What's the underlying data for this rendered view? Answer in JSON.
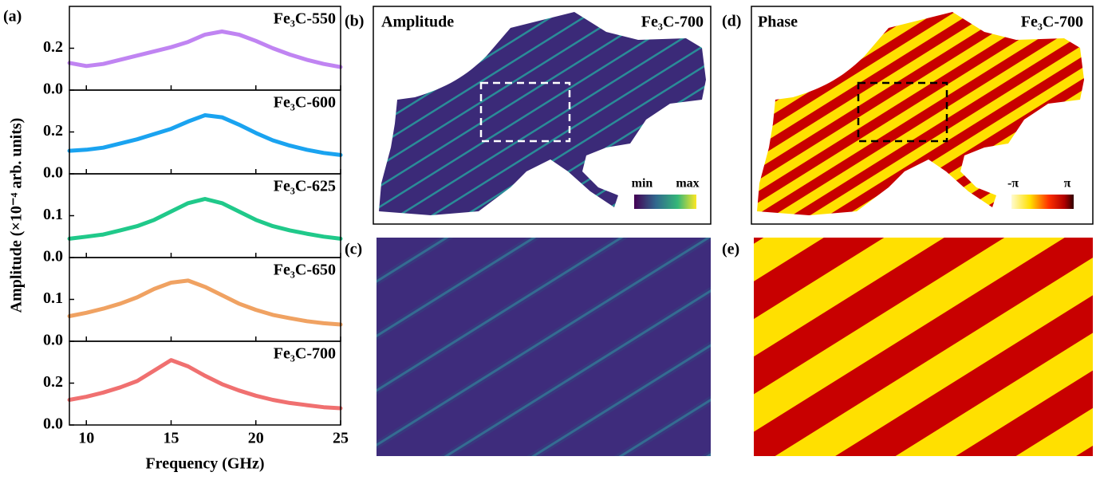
{
  "figure": {
    "panel_label": "(a)",
    "xlabel": "Frequency (GHz)",
    "ylabel": "Amplitude (×10⁻⁴ arb. units)"
  },
  "chart_data": [
    {
      "type": "line",
      "title": "Fe₃C-550",
      "color": "#c084f2",
      "xlim": [
        9,
        25
      ],
      "x": [
        9,
        10,
        11,
        12,
        13,
        14,
        15,
        16,
        17,
        18,
        19,
        20,
        21,
        22,
        23,
        24,
        25
      ],
      "values": [
        0.13,
        0.115,
        0.125,
        0.145,
        0.165,
        0.185,
        0.205,
        0.23,
        0.265,
        0.28,
        0.265,
        0.235,
        0.2,
        0.17,
        0.145,
        0.125,
        0.11
      ],
      "ylim": [
        0,
        0.4
      ],
      "yticks": [
        {
          "value": 0,
          "label": "0.0"
        },
        0.2
      ]
    },
    {
      "type": "line",
      "title": "Fe₃C-600",
      "color": "#1aa3f0",
      "xlim": [
        9,
        25
      ],
      "x": [
        9,
        10,
        11,
        12,
        13,
        14,
        15,
        16,
        17,
        18,
        19,
        20,
        21,
        22,
        23,
        24,
        25
      ],
      "values": [
        0.11,
        0.115,
        0.125,
        0.145,
        0.165,
        0.19,
        0.215,
        0.25,
        0.28,
        0.27,
        0.235,
        0.195,
        0.16,
        0.135,
        0.115,
        0.1,
        0.09
      ],
      "ylim": [
        0,
        0.4
      ],
      "yticks": [
        {
          "value": 0,
          "label": "0.0"
        },
        0.2
      ]
    },
    {
      "type": "line",
      "title": "Fe₃C-625",
      "color": "#20c98a",
      "xlim": [
        9,
        25
      ],
      "x": [
        9,
        10,
        11,
        12,
        13,
        14,
        15,
        16,
        17,
        18,
        19,
        20,
        21,
        22,
        23,
        24,
        25
      ],
      "values": [
        0.045,
        0.05,
        0.055,
        0.065,
        0.075,
        0.09,
        0.11,
        0.13,
        0.14,
        0.13,
        0.11,
        0.09,
        0.075,
        0.065,
        0.057,
        0.05,
        0.045
      ],
      "ylim": [
        0,
        0.2
      ],
      "yticks": [
        {
          "value": 0,
          "label": "0.0"
        },
        0.1
      ]
    },
    {
      "type": "line",
      "title": "Fe₃C-650",
      "color": "#f0a262",
      "xlim": [
        9,
        25
      ],
      "x": [
        9,
        10,
        11,
        12,
        13,
        14,
        15,
        16,
        17,
        18,
        19,
        20,
        21,
        22,
        23,
        24,
        25
      ],
      "values": [
        0.06,
        0.068,
        0.078,
        0.09,
        0.105,
        0.125,
        0.14,
        0.145,
        0.13,
        0.11,
        0.09,
        0.075,
        0.063,
        0.055,
        0.048,
        0.043,
        0.04
      ],
      "ylim": [
        0,
        0.2
      ],
      "yticks": [
        {
          "value": 0,
          "label": "0.0"
        },
        0.1
      ]
    },
    {
      "type": "line",
      "title": "Fe₃C-700",
      "color": "#f07070",
      "xlim": [
        9,
        25
      ],
      "x": [
        9,
        10,
        11,
        12,
        13,
        14,
        15,
        16,
        17,
        18,
        19,
        20,
        21,
        22,
        23,
        24,
        25
      ],
      "values": [
        0.12,
        0.135,
        0.155,
        0.18,
        0.21,
        0.26,
        0.31,
        0.28,
        0.235,
        0.195,
        0.165,
        0.14,
        0.12,
        0.105,
        0.095,
        0.085,
        0.08
      ],
      "ylim": [
        0,
        0.4
      ],
      "yticks": [
        {
          "value": 0,
          "label": "0.0"
        },
        0.2
      ],
      "xticks": [
        10,
        15,
        20,
        25
      ]
    }
  ],
  "panels": [
    {
      "label": "(b)",
      "title": "Amplitude",
      "sample": "Fe₃C-700",
      "colorbar": [
        "min",
        "max"
      ]
    },
    {
      "label": "(c)"
    },
    {
      "label": "(d)",
      "title": "Phase",
      "sample": "Fe₃C-700",
      "colorbar": [
        "-π",
        "π"
      ]
    },
    {
      "label": "(e)"
    }
  ]
}
